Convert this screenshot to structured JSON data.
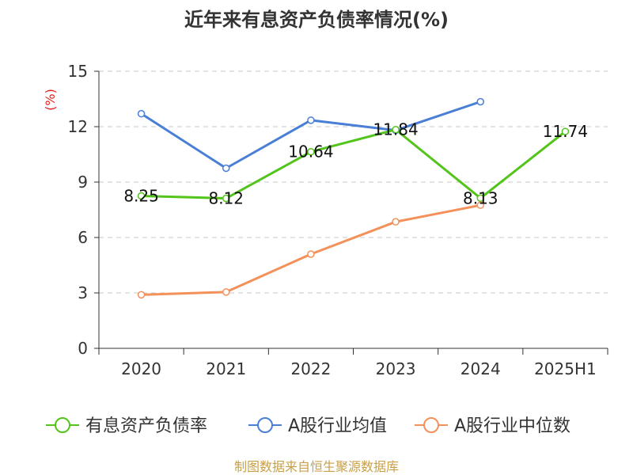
{
  "chart_data": {
    "type": "line",
    "title": "近年来有息资产负债率情况(%)",
    "ylabel": "(%)",
    "xlabel": "",
    "categories": [
      "2020",
      "2021",
      "2022",
      "2023",
      "2024",
      "2025H1"
    ],
    "ylim": [
      0,
      15
    ],
    "yticks": [
      0,
      3,
      6,
      9,
      12,
      15
    ],
    "grid": true,
    "legend_position": "bottom",
    "series": [
      {
        "name": "有息资产负债率",
        "color": "#52c41a",
        "values": [
          8.25,
          8.12,
          10.64,
          11.84,
          8.13,
          11.74
        ],
        "labels": [
          "8.25",
          "8.12",
          "10.64",
          "11.84",
          "8.13",
          "11.74"
        ]
      },
      {
        "name": "A股行业均值",
        "color": "#4a7fd6",
        "values": [
          12.7,
          9.75,
          12.35,
          11.8,
          13.35,
          null
        ]
      },
      {
        "name": "A股行业中位数",
        "color": "#f4905a",
        "values": [
          2.9,
          3.05,
          5.1,
          6.85,
          7.75,
          null
        ]
      }
    ],
    "source": "制图数据来自恒生聚源数据库"
  }
}
